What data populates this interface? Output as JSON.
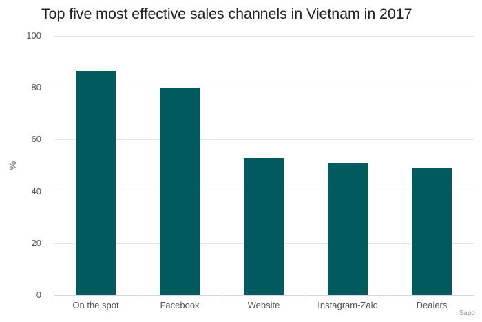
{
  "chart_data": {
    "type": "bar",
    "title": "Top five most effective sales channels in Vietnam in 2017",
    "categories": [
      "On the spot",
      "Facebook",
      "Website",
      "Instagram-Zalo",
      "Dealers"
    ],
    "values": [
      86.5,
      80,
      53,
      51,
      49
    ],
    "xlabel": "",
    "ylabel": "%",
    "ylim": [
      0,
      100
    ],
    "yticks": [
      0,
      20,
      40,
      60,
      80,
      100
    ],
    "grid": true,
    "legend": null,
    "bar_color": "#015a5e",
    "source": "Sapo"
  },
  "labels": {
    "title": "Top five most effective sales channels in Vietnam in 2017",
    "ylabel": "%",
    "source": "Sapo",
    "yticks": [
      "0",
      "20",
      "40",
      "60",
      "80",
      "100"
    ],
    "categories": [
      "On the spot",
      "Facebook",
      "Website",
      "Instagram-Zalo",
      "Dealers"
    ]
  }
}
